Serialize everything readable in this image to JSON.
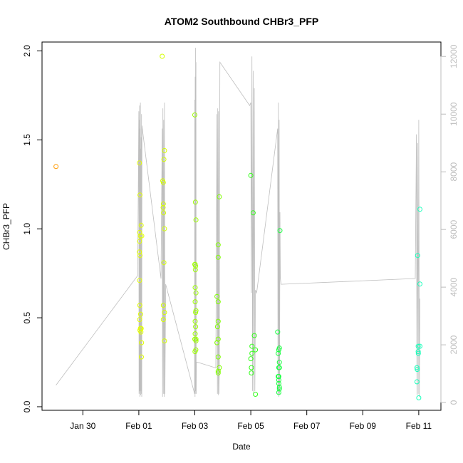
{
  "chart_data": {
    "type": "scatter",
    "title": "ATOM2 Southbound CHBr3_PFP",
    "xlabel": "Date",
    "ylabel": "CHBr3_PFP",
    "xlim": [
      "2017-01-28T13:00",
      "2017-02-11T19:00"
    ],
    "ylim": [
      -0.02,
      2.05
    ],
    "x_ticks": [
      {
        "date": "2017-01-30",
        "label": "Jan 30"
      },
      {
        "date": "2017-02-01",
        "label": "Feb 01"
      },
      {
        "date": "2017-02-03",
        "label": "Feb 03"
      },
      {
        "date": "2017-02-05",
        "label": "Feb 05"
      },
      {
        "date": "2017-02-07",
        "label": "Feb 07"
      },
      {
        "date": "2017-02-09",
        "label": "Feb 09"
      },
      {
        "date": "2017-02-11",
        "label": "Feb 11"
      }
    ],
    "y_ticks": [
      "0.0",
      "0.5",
      "1.0",
      "1.5",
      "2.0"
    ],
    "y2_range": [
      -270,
      12500
    ],
    "y2_ticks": [
      "0",
      "2000",
      "4000",
      "6000",
      "8000",
      "10000",
      "12000"
    ],
    "grid": false,
    "points": [
      {
        "x": "2017-01-29T01:00",
        "y": 1.35,
        "color": "#ff9900"
      },
      {
        "x": "2017-02-01T00:30",
        "y": 1.37,
        "color": "#e2ff00"
      },
      {
        "x": "2017-02-01T01:00",
        "y": 1.19,
        "color": "#e2ff00"
      },
      {
        "x": "2017-02-01T02:00",
        "y": 1.02,
        "color": "#e2ff00"
      },
      {
        "x": "2017-02-01T00:45",
        "y": 0.98,
        "color": "#e2ff00"
      },
      {
        "x": "2017-02-01T01:15",
        "y": 0.96,
        "color": "#e2ff00"
      },
      {
        "x": "2017-02-01T02:30",
        "y": 0.96,
        "color": "#e2ff00"
      },
      {
        "x": "2017-02-01T00:40",
        "y": 0.93,
        "color": "#e2ff00"
      },
      {
        "x": "2017-02-01T00:30",
        "y": 0.87,
        "color": "#e2ff00"
      },
      {
        "x": "2017-02-01T01:00",
        "y": 0.85,
        "color": "#e2ff00"
      },
      {
        "x": "2017-02-01T00:40",
        "y": 0.71,
        "color": "#e2ff00"
      },
      {
        "x": "2017-02-01T00:50",
        "y": 0.57,
        "color": "#e2ff00"
      },
      {
        "x": "2017-02-01T01:30",
        "y": 0.52,
        "color": "#e2ff00"
      },
      {
        "x": "2017-02-01T00:40",
        "y": 0.49,
        "color": "#e2ff00"
      },
      {
        "x": "2017-02-01T01:20",
        "y": 0.44,
        "color": "#e2ff00"
      },
      {
        "x": "2017-02-01T02:00",
        "y": 0.44,
        "color": "#e2ff00"
      },
      {
        "x": "2017-02-01T01:00",
        "y": 0.43,
        "color": "#e2ff00"
      },
      {
        "x": "2017-02-01T01:45",
        "y": 0.42,
        "color": "#e2ff00"
      },
      {
        "x": "2017-02-01T02:20",
        "y": 0.36,
        "color": "#e2ff00"
      },
      {
        "x": "2017-02-01T02:10",
        "y": 0.28,
        "color": "#e2ff00"
      },
      {
        "x": "2017-02-01T20:00",
        "y": 1.97,
        "color": "#d4ff00"
      },
      {
        "x": "2017-02-01T22:00",
        "y": 1.44,
        "color": "#d4ff00"
      },
      {
        "x": "2017-02-01T21:30",
        "y": 1.39,
        "color": "#d4ff00"
      },
      {
        "x": "2017-02-01T20:30",
        "y": 1.27,
        "color": "#d4ff00"
      },
      {
        "x": "2017-02-01T21:00",
        "y": 1.26,
        "color": "#d4ff00"
      },
      {
        "x": "2017-02-01T21:00",
        "y": 1.14,
        "color": "#d4ff00"
      },
      {
        "x": "2017-02-01T20:50",
        "y": 1.12,
        "color": "#d4ff00"
      },
      {
        "x": "2017-02-01T21:10",
        "y": 1.09,
        "color": "#d4ff00"
      },
      {
        "x": "2017-02-01T22:00",
        "y": 1.0,
        "color": "#d4ff00"
      },
      {
        "x": "2017-02-01T21:30",
        "y": 0.81,
        "color": "#d4ff00"
      },
      {
        "x": "2017-02-01T21:00",
        "y": 0.57,
        "color": "#d4ff00"
      },
      {
        "x": "2017-02-01T22:00",
        "y": 0.53,
        "color": "#d4ff00"
      },
      {
        "x": "2017-02-01T21:00",
        "y": 0.49,
        "color": "#d4ff00"
      },
      {
        "x": "2017-02-01T22:00",
        "y": 0.37,
        "color": "#d4ff00"
      },
      {
        "x": "2017-02-03T00:00",
        "y": 1.64,
        "color": "#9cff00"
      },
      {
        "x": "2017-02-03T00:30",
        "y": 1.15,
        "color": "#9cff00"
      },
      {
        "x": "2017-02-03T01:00",
        "y": 1.05,
        "color": "#9cff00"
      },
      {
        "x": "2017-02-03T00:00",
        "y": 0.8,
        "color": "#9cff00"
      },
      {
        "x": "2017-02-03T00:20",
        "y": 0.8,
        "color": "#9cff00"
      },
      {
        "x": "2017-02-03T00:40",
        "y": 0.79,
        "color": "#9cff00"
      },
      {
        "x": "2017-02-03T00:30",
        "y": 0.77,
        "color": "#9cff00"
      },
      {
        "x": "2017-02-03T00:20",
        "y": 0.67,
        "color": "#9cff00"
      },
      {
        "x": "2017-02-03T01:00",
        "y": 0.64,
        "color": "#9cff00"
      },
      {
        "x": "2017-02-03T00:20",
        "y": 0.59,
        "color": "#9cff00"
      },
      {
        "x": "2017-02-03T01:00",
        "y": 0.54,
        "color": "#9cff00"
      },
      {
        "x": "2017-02-03T00:40",
        "y": 0.53,
        "color": "#9cff00"
      },
      {
        "x": "2017-02-03T00:20",
        "y": 0.48,
        "color": "#9cff00"
      },
      {
        "x": "2017-02-03T00:40",
        "y": 0.45,
        "color": "#9cff00"
      },
      {
        "x": "2017-02-03T00:20",
        "y": 0.41,
        "color": "#9cff00"
      },
      {
        "x": "2017-02-03T00:00",
        "y": 0.38,
        "color": "#9cff00"
      },
      {
        "x": "2017-02-03T01:00",
        "y": 0.38,
        "color": "#9cff00"
      },
      {
        "x": "2017-02-03T01:00",
        "y": 0.37,
        "color": "#9cff00"
      },
      {
        "x": "2017-02-03T00:50",
        "y": 0.32,
        "color": "#9cff00"
      },
      {
        "x": "2017-02-03T00:10",
        "y": 0.31,
        "color": "#9cff00"
      },
      {
        "x": "2017-02-03T21:00",
        "y": 1.18,
        "color": "#80ff00"
      },
      {
        "x": "2017-02-03T20:00",
        "y": 0.91,
        "color": "#80ff00"
      },
      {
        "x": "2017-02-03T20:00",
        "y": 0.84,
        "color": "#80ff00"
      },
      {
        "x": "2017-02-03T19:00",
        "y": 0.62,
        "color": "#80ff00"
      },
      {
        "x": "2017-02-03T20:00",
        "y": 0.59,
        "color": "#80ff00"
      },
      {
        "x": "2017-02-03T20:00",
        "y": 0.48,
        "color": "#80ff00"
      },
      {
        "x": "2017-02-03T19:30",
        "y": 0.45,
        "color": "#80ff00"
      },
      {
        "x": "2017-02-03T20:00",
        "y": 0.38,
        "color": "#80ff00"
      },
      {
        "x": "2017-02-03T19:00",
        "y": 0.36,
        "color": "#80ff00"
      },
      {
        "x": "2017-02-03T20:00",
        "y": 0.28,
        "color": "#80ff00"
      },
      {
        "x": "2017-02-03T21:00",
        "y": 0.22,
        "color": "#80ff00"
      },
      {
        "x": "2017-02-03T20:00",
        "y": 0.2,
        "color": "#80ff00"
      },
      {
        "x": "2017-02-03T20:00",
        "y": 0.19,
        "color": "#80ff00"
      },
      {
        "x": "2017-02-05T00:00",
        "y": 1.3,
        "color": "#33ff1a"
      },
      {
        "x": "2017-02-05T02:00",
        "y": 1.09,
        "color": "#33ff1a"
      },
      {
        "x": "2017-02-05T03:00",
        "y": 0.4,
        "color": "#33ff1a"
      },
      {
        "x": "2017-02-05T01:00",
        "y": 0.34,
        "color": "#33ff1a"
      },
      {
        "x": "2017-02-05T04:00",
        "y": 0.32,
        "color": "#33ff1a"
      },
      {
        "x": "2017-02-05T01:00",
        "y": 0.3,
        "color": "#33ff1a"
      },
      {
        "x": "2017-02-05T00:00",
        "y": 0.27,
        "color": "#33ff1a"
      },
      {
        "x": "2017-02-05T00:30",
        "y": 0.22,
        "color": "#33ff1a"
      },
      {
        "x": "2017-02-05T00:30",
        "y": 0.19,
        "color": "#33ff1a"
      },
      {
        "x": "2017-02-05T04:00",
        "y": 0.07,
        "color": "#33ff1a"
      },
      {
        "x": "2017-02-06T01:00",
        "y": 0.99,
        "color": "#1aff40"
      },
      {
        "x": "2017-02-05T23:00",
        "y": 0.42,
        "color": "#1aff40"
      },
      {
        "x": "2017-02-06T00:30",
        "y": 0.33,
        "color": "#1aff40"
      },
      {
        "x": "2017-02-06T00:00",
        "y": 0.32,
        "color": "#1aff40"
      },
      {
        "x": "2017-02-05T23:30",
        "y": 0.3,
        "color": "#1aff40"
      },
      {
        "x": "2017-02-06T00:30",
        "y": 0.25,
        "color": "#1aff40"
      },
      {
        "x": "2017-02-06T00:00",
        "y": 0.22,
        "color": "#1aff40"
      },
      {
        "x": "2017-02-06T00:30",
        "y": 0.22,
        "color": "#1aff40"
      },
      {
        "x": "2017-02-05T23:30",
        "y": 0.17,
        "color": "#1aff40"
      },
      {
        "x": "2017-02-06T00:00",
        "y": 0.17,
        "color": "#1aff40"
      },
      {
        "x": "2017-02-06T00:00",
        "y": 0.15,
        "color": "#1aff40"
      },
      {
        "x": "2017-02-06T00:00",
        "y": 0.13,
        "color": "#1aff40"
      },
      {
        "x": "2017-02-06T00:30",
        "y": 0.11,
        "color": "#1aff40"
      },
      {
        "x": "2017-02-06T00:30",
        "y": 0.1,
        "color": "#1aff40"
      },
      {
        "x": "2017-02-06T00:00",
        "y": 0.08,
        "color": "#1aff40"
      },
      {
        "x": "2017-02-10T23:00",
        "y": 0.85,
        "color": "#1affbb"
      },
      {
        "x": "2017-02-11T01:00",
        "y": 1.11,
        "color": "#1affbb"
      },
      {
        "x": "2017-02-11T01:00",
        "y": 0.69,
        "color": "#1affbb"
      },
      {
        "x": "2017-02-10T23:30",
        "y": 0.34,
        "color": "#1affbb"
      },
      {
        "x": "2017-02-11T01:00",
        "y": 0.34,
        "color": "#1affbb"
      },
      {
        "x": "2017-02-10T23:30",
        "y": 0.31,
        "color": "#1affbb"
      },
      {
        "x": "2017-02-10T23:40",
        "y": 0.3,
        "color": "#1affbb"
      },
      {
        "x": "2017-02-10T22:30",
        "y": 0.22,
        "color": "#1affbb"
      },
      {
        "x": "2017-02-10T22:40",
        "y": 0.21,
        "color": "#1affbb"
      },
      {
        "x": "2017-02-10T22:30",
        "y": 0.14,
        "color": "#1affbb"
      },
      {
        "x": "2017-02-11T00:00",
        "y": 0.05,
        "color": "#1affbb"
      }
    ],
    "altitude_series": {
      "color": "#bebebe",
      "x": [
        "2017-01-29T01:00",
        "2017-01-31T23:00",
        "2017-02-01T00:00",
        "2017-02-01T00:10",
        "2017-02-01T00:20",
        "2017-02-01T00:30",
        "2017-02-01T00:40",
        "2017-02-01T00:50",
        "2017-02-01T01:00",
        "2017-02-01T01:10",
        "2017-02-01T01:20",
        "2017-02-01T01:30",
        "2017-02-01T01:40",
        "2017-02-01T01:50",
        "2017-02-01T02:00",
        "2017-02-01T02:10",
        "2017-02-01T02:20",
        "2017-02-01T02:30",
        "2017-02-01T02:40",
        "2017-02-01T19:00",
        "2017-02-01T20:00",
        "2017-02-01T20:20",
        "2017-02-01T20:40",
        "2017-02-01T21:00",
        "2017-02-01T21:20",
        "2017-02-01T21:40",
        "2017-02-01T22:00",
        "2017-02-01T22:20",
        "2017-02-01T23:00",
        "2017-02-02T23:50",
        "2017-02-03T00:00",
        "2017-02-03T00:10",
        "2017-02-03T00:20",
        "2017-02-03T00:30",
        "2017-02-03T00:40",
        "2017-02-03T00:50",
        "2017-02-03T01:00",
        "2017-02-03T01:10",
        "2017-02-03T01:20",
        "2017-02-03T02:00",
        "2017-02-03T18:00",
        "2017-02-03T19:00",
        "2017-02-03T19:20",
        "2017-02-03T19:40",
        "2017-02-03T20:00",
        "2017-02-03T20:20",
        "2017-02-03T20:40",
        "2017-02-03T21:00",
        "2017-02-03T21:30",
        "2017-02-04T23:00",
        "2017-02-05T00:00",
        "2017-02-05T00:30",
        "2017-02-05T01:00",
        "2017-02-05T01:30",
        "2017-02-05T02:00",
        "2017-02-05T02:30",
        "2017-02-05T03:00",
        "2017-02-05T03:30",
        "2017-02-05T04:00",
        "2017-02-05T05:00",
        "2017-02-05T23:00",
        "2017-02-05T23:20",
        "2017-02-05T23:40",
        "2017-02-06T00:00",
        "2017-02-06T00:20",
        "2017-02-06T00:40",
        "2017-02-06T01:00",
        "2017-02-06T01:20",
        "2017-02-06T02:00",
        "2017-02-10T21:00",
        "2017-02-10T22:00",
        "2017-02-10T22:30",
        "2017-02-10T23:00",
        "2017-02-10T23:30",
        "2017-02-11T00:00",
        "2017-02-11T00:30",
        "2017-02-11T01:00"
      ],
      "y": [
        600,
        4400,
        10100,
        300,
        9800,
        400,
        10300,
        200,
        9500,
        350,
        10400,
        250,
        8800,
        400,
        9200,
        300,
        10000,
        200,
        9600,
        4300,
        9500,
        200,
        10200,
        300,
        9800,
        200,
        10400,
        300,
        4100,
        300,
        10500,
        200,
        11300,
        300,
        12300,
        400,
        11800,
        300,
        1400,
        1400,
        1200,
        10000,
        300,
        10200,
        250,
        10100,
        300,
        1100,
        11800,
        10300,
        10400,
        3800,
        12000,
        400,
        11500,
        300,
        10900,
        400,
        3900,
        3800,
        9500,
        300,
        10400,
        200,
        9800,
        300,
        6600,
        4300,
        4100,
        4300,
        9300,
        250,
        9000,
        300,
        9800,
        200,
        3600
      ]
    }
  }
}
